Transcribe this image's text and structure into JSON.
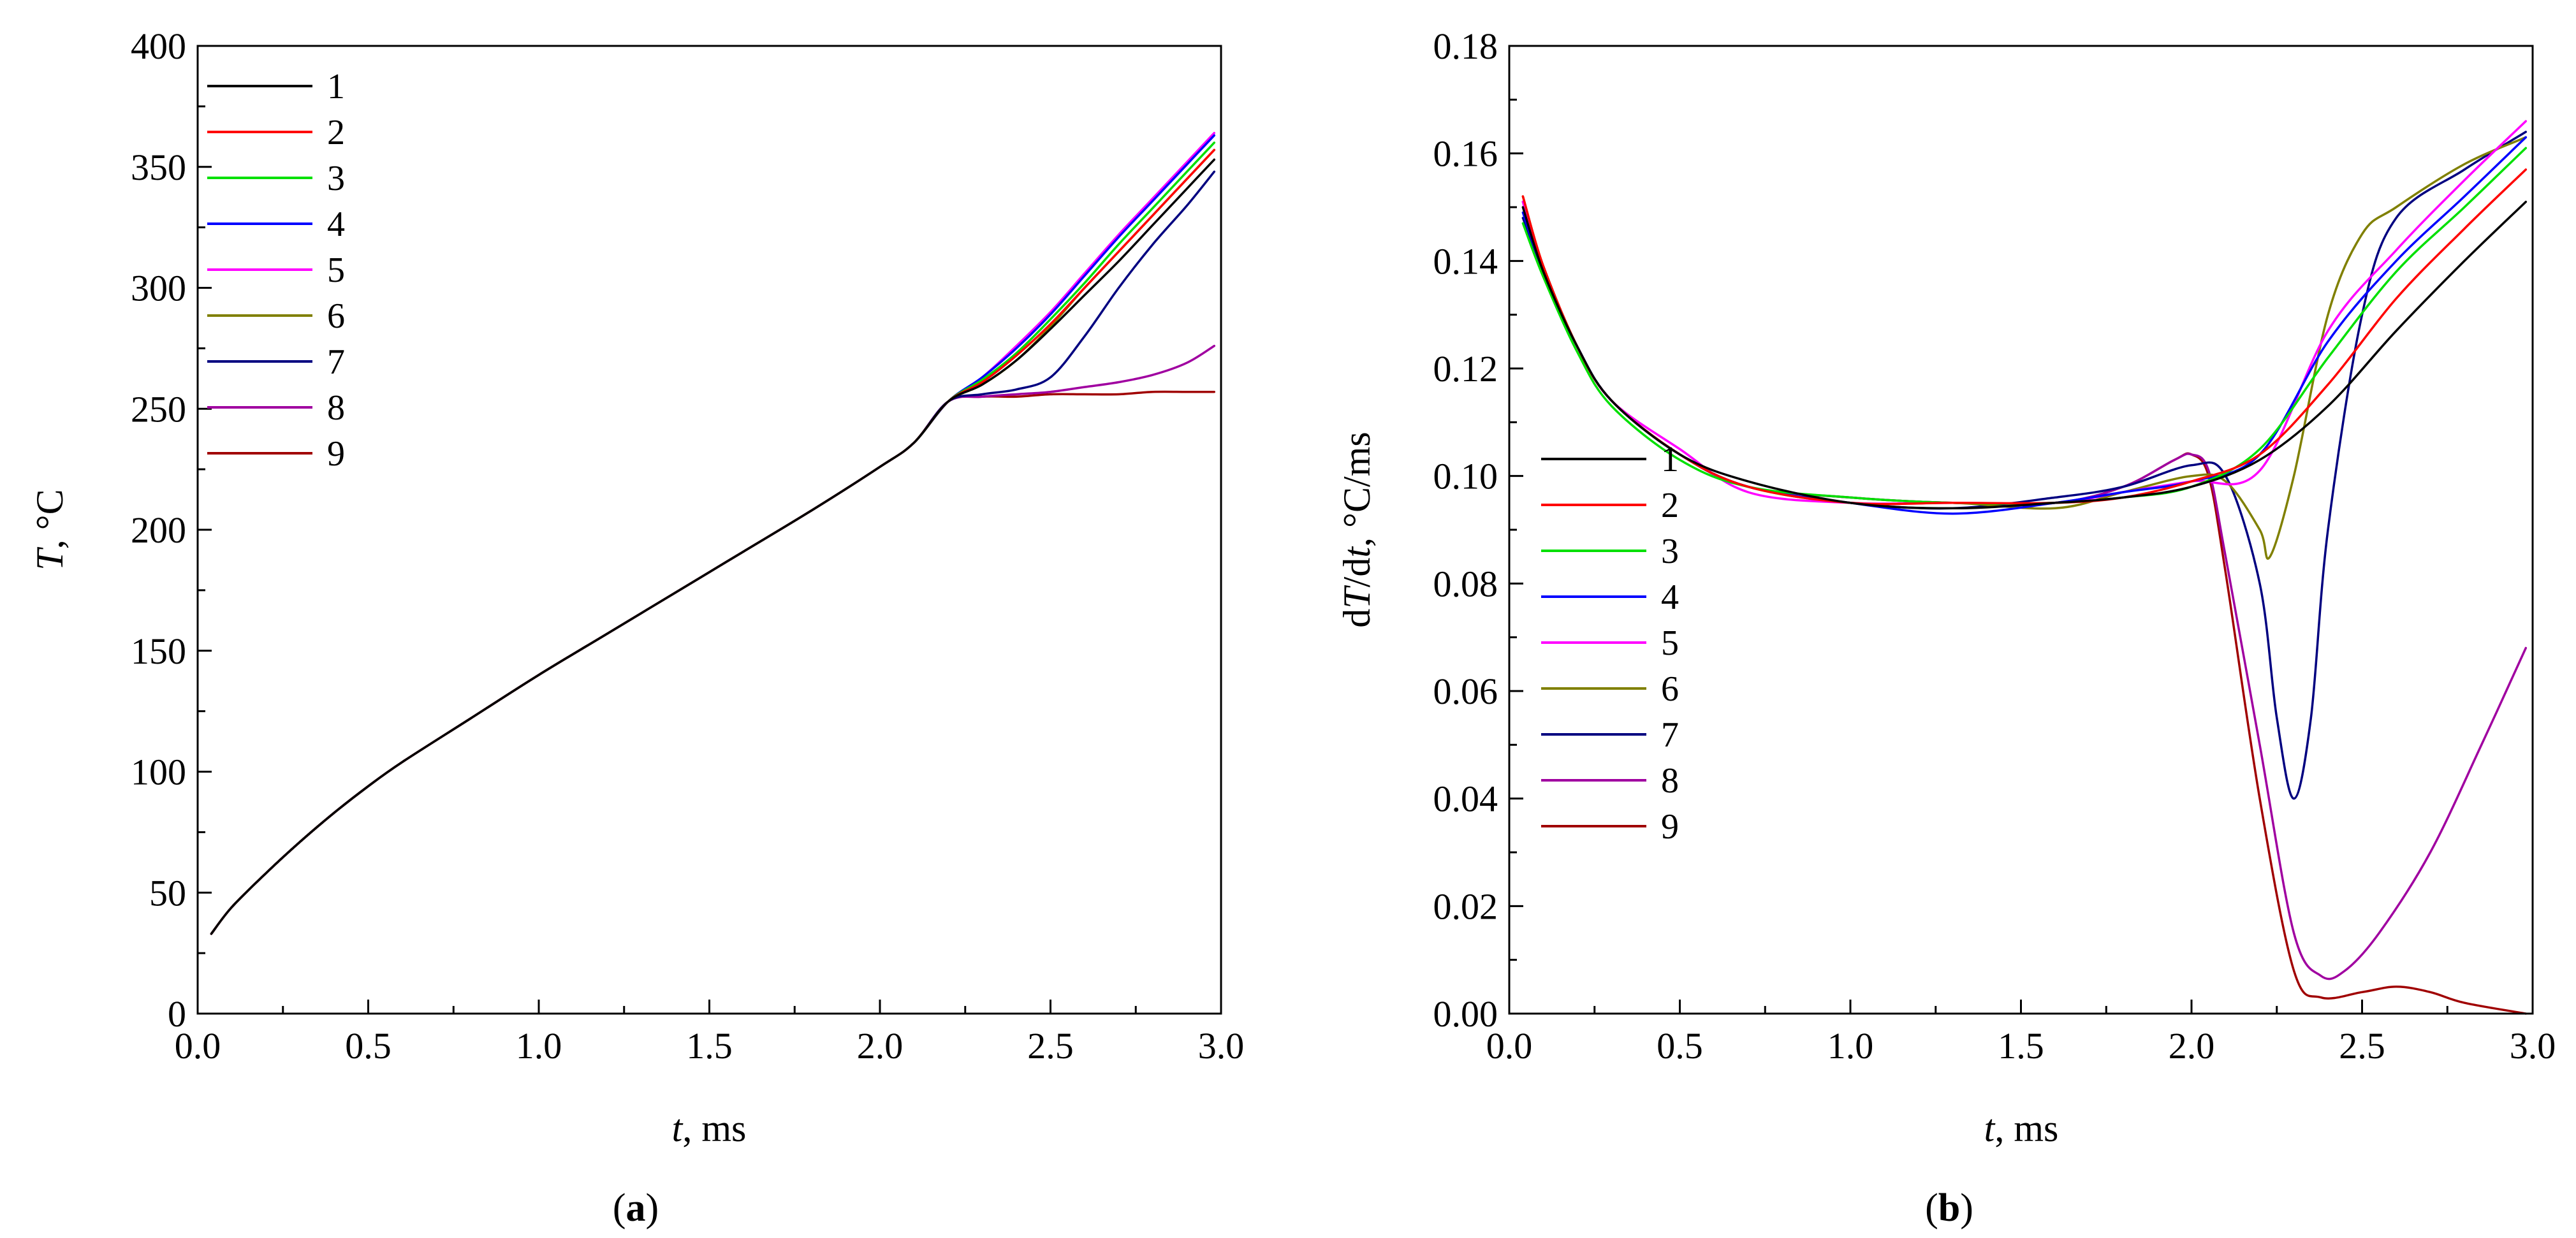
{
  "chart_data": [
    {
      "type": "line",
      "panel_label": {
        "open": "(",
        "letter": "a",
        "close": ")"
      },
      "ylabel": {
        "italic": "T",
        "rest": ", °C"
      },
      "xlabel": {
        "italic": "t",
        "rest": ", ms"
      },
      "xlim": [
        0,
        3.0
      ],
      "ylim": [
        0,
        400
      ],
      "xticks": [
        0.0,
        0.5,
        1.0,
        1.5,
        2.0,
        2.5,
        3.0
      ],
      "xtick_labels": [
        "0.0",
        "0.5",
        "1.0",
        "1.5",
        "2.0",
        "2.5",
        "3.0"
      ],
      "yticks": [
        0,
        50,
        100,
        150,
        200,
        250,
        300,
        350,
        400
      ],
      "ytick_labels": [
        "0",
        "50",
        "100",
        "150",
        "200",
        "250",
        "300",
        "350",
        "400"
      ],
      "legend_position": "top-left",
      "base_curve": {
        "x": [
          0.04,
          0.1,
          0.2,
          0.3,
          0.4,
          0.5,
          0.6,
          0.8,
          1.0,
          1.2,
          1.4,
          1.6,
          1.8,
          2.0,
          2.1,
          2.2
        ],
        "y": [
          33,
          44,
          58,
          71,
          83,
          94,
          104,
          122,
          140,
          157,
          174,
          191,
          208,
          226,
          236,
          253
        ]
      },
      "series": [
        {
          "name": "1",
          "color": "#000000",
          "x": [
            2.2,
            2.3,
            2.4,
            2.5,
            2.6,
            2.7,
            2.8,
            2.9,
            2.98
          ],
          "y": [
            253,
            260,
            270,
            283,
            297,
            311,
            326,
            341,
            353
          ]
        },
        {
          "name": "2",
          "color": "#ff0000",
          "x": [
            2.2,
            2.3,
            2.4,
            2.5,
            2.6,
            2.7,
            2.8,
            2.9,
            2.98
          ],
          "y": [
            253,
            261,
            272,
            285,
            300,
            315,
            330,
            345,
            357
          ]
        },
        {
          "name": "3",
          "color": "#00e000",
          "x": [
            2.2,
            2.3,
            2.4,
            2.5,
            2.6,
            2.7,
            2.8,
            2.9,
            2.98
          ],
          "y": [
            253,
            262,
            273,
            287,
            302,
            318,
            333,
            348,
            360
          ]
        },
        {
          "name": "4",
          "color": "#0000ff",
          "x": [
            2.2,
            2.3,
            2.4,
            2.5,
            2.6,
            2.7,
            2.8,
            2.9,
            2.98
          ],
          "y": [
            253,
            263,
            275,
            289,
            305,
            321,
            336,
            351,
            363
          ]
        },
        {
          "name": "5",
          "color": "#ff00ff",
          "x": [
            2.2,
            2.3,
            2.4,
            2.5,
            2.6,
            2.7,
            2.8,
            2.9,
            2.98
          ],
          "y": [
            253,
            263,
            276,
            290,
            306,
            322,
            337,
            352,
            364
          ]
        },
        {
          "name": "6",
          "color": "#808000",
          "x": [
            2.2,
            2.3,
            2.4,
            2.5,
            2.6,
            2.7,
            2.8,
            2.9,
            2.98
          ],
          "y": [
            253,
            260,
            270,
            284,
            300,
            315,
            330,
            345,
            357
          ]
        },
        {
          "name": "7",
          "color": "#000080",
          "x": [
            2.2,
            2.3,
            2.4,
            2.5,
            2.6,
            2.7,
            2.8,
            2.9,
            2.98
          ],
          "y": [
            253,
            256,
            258,
            263,
            280,
            300,
            318,
            334,
            348
          ]
        },
        {
          "name": "8",
          "color": "#a000a0",
          "x": [
            2.2,
            2.3,
            2.4,
            2.5,
            2.6,
            2.7,
            2.8,
            2.9,
            2.98
          ],
          "y": [
            253,
            255,
            256,
            257,
            259,
            261,
            264,
            269,
            276
          ]
        },
        {
          "name": "9",
          "color": "#a00000",
          "x": [
            2.2,
            2.3,
            2.4,
            2.5,
            2.6,
            2.7,
            2.8,
            2.9,
            2.98
          ],
          "y": [
            253,
            255,
            255,
            256,
            256,
            256,
            257,
            257,
            257
          ]
        }
      ]
    },
    {
      "type": "line",
      "panel_label": {
        "open": "(",
        "letter": "b",
        "close": ")"
      },
      "ylabel": {
        "p1": "d",
        "i1": "T",
        "p2": "/d",
        "i2": "t",
        "p3": ", °C/ms"
      },
      "xlabel": {
        "italic": "t",
        "rest": ", ms"
      },
      "xlim": [
        0,
        3.0
      ],
      "ylim": [
        0,
        0.18
      ],
      "xticks": [
        0.0,
        0.5,
        1.0,
        1.5,
        2.0,
        2.5,
        3.0
      ],
      "xtick_labels": [
        "0.0",
        "0.5",
        "1.0",
        "1.5",
        "2.0",
        "2.5",
        "3.0"
      ],
      "yticks": [
        0.0,
        0.02,
        0.04,
        0.06,
        0.08,
        0.1,
        0.12,
        0.14,
        0.16,
        0.18
      ],
      "ytick_labels": [
        "0.00",
        "0.02",
        "0.04",
        "0.06",
        "0.08",
        "0.10",
        "0.12",
        "0.14",
        "0.16",
        "0.18"
      ],
      "legend_position": "center-left",
      "series": [
        {
          "name": "1",
          "color": "#000000",
          "x": [
            0.04,
            0.1,
            0.2,
            0.3,
            0.5,
            0.7,
            1.0,
            1.3,
            1.6,
            1.8,
            2.0,
            2.2,
            2.4,
            2.6,
            2.8,
            2.98
          ],
          "y": [
            0.15,
            0.138,
            0.124,
            0.114,
            0.104,
            0.099,
            0.095,
            0.094,
            0.095,
            0.096,
            0.098,
            0.103,
            0.113,
            0.127,
            0.14,
            0.151
          ]
        },
        {
          "name": "2",
          "color": "#ff0000",
          "x": [
            0.04,
            0.1,
            0.2,
            0.3,
            0.5,
            0.7,
            1.0,
            1.3,
            1.6,
            1.8,
            2.0,
            2.2,
            2.4,
            2.6,
            2.8,
            2.98
          ],
          "y": [
            0.152,
            0.139,
            0.124,
            0.114,
            0.104,
            0.098,
            0.095,
            0.095,
            0.095,
            0.096,
            0.099,
            0.104,
            0.117,
            0.133,
            0.146,
            0.157
          ]
        },
        {
          "name": "3",
          "color": "#00e000",
          "x": [
            0.04,
            0.1,
            0.2,
            0.3,
            0.5,
            0.7,
            1.0,
            1.3,
            1.6,
            1.8,
            2.0,
            2.2,
            2.4,
            2.6,
            2.8,
            2.98
          ],
          "y": [
            0.147,
            0.137,
            0.123,
            0.113,
            0.103,
            0.098,
            0.096,
            0.095,
            0.095,
            0.096,
            0.098,
            0.105,
            0.122,
            0.138,
            0.15,
            0.161
          ]
        },
        {
          "name": "4",
          "color": "#0000ff",
          "x": [
            0.04,
            0.1,
            0.2,
            0.3,
            0.5,
            0.7,
            1.0,
            1.3,
            1.6,
            1.8,
            2.0,
            2.2,
            2.4,
            2.6,
            2.8,
            2.98
          ],
          "y": [
            0.149,
            0.138,
            0.124,
            0.114,
            0.104,
            0.098,
            0.095,
            0.093,
            0.095,
            0.097,
            0.099,
            0.104,
            0.125,
            0.14,
            0.152,
            0.163
          ]
        },
        {
          "name": "5",
          "color": "#ff00ff",
          "x": [
            0.04,
            0.1,
            0.2,
            0.3,
            0.5,
            0.7,
            1.0,
            1.3,
            1.6,
            1.8,
            2.0,
            2.2,
            2.4,
            2.6,
            2.8,
            2.98
          ],
          "y": [
            0.151,
            0.138,
            0.124,
            0.114,
            0.105,
            0.097,
            0.095,
            0.095,
            0.095,
            0.097,
            0.099,
            0.101,
            0.127,
            0.142,
            0.155,
            0.166
          ]
        },
        {
          "name": "6",
          "color": "#808000",
          "x": [
            0.04,
            0.1,
            0.2,
            0.3,
            0.5,
            0.7,
            1.0,
            1.3,
            1.6,
            1.8,
            2.0,
            2.1,
            2.2,
            2.23,
            2.3,
            2.4,
            2.5,
            2.6,
            2.8,
            2.98
          ],
          "y": [
            0.152,
            0.139,
            0.124,
            0.114,
            0.104,
            0.098,
            0.095,
            0.095,
            0.094,
            0.097,
            0.1,
            0.099,
            0.09,
            0.085,
            0.1,
            0.13,
            0.145,
            0.15,
            0.158,
            0.163
          ]
        },
        {
          "name": "7",
          "color": "#000080",
          "x": [
            0.04,
            0.1,
            0.2,
            0.3,
            0.5,
            0.7,
            1.0,
            1.3,
            1.6,
            1.8,
            2.0,
            2.1,
            2.2,
            2.25,
            2.3,
            2.35,
            2.4,
            2.5,
            2.6,
            2.8,
            2.98
          ],
          "y": [
            0.148,
            0.138,
            0.124,
            0.114,
            0.104,
            0.098,
            0.095,
            0.094,
            0.096,
            0.098,
            0.102,
            0.1,
            0.08,
            0.055,
            0.04,
            0.055,
            0.09,
            0.13,
            0.148,
            0.157,
            0.164
          ]
        },
        {
          "name": "8",
          "color": "#a000a0",
          "x": [
            0.04,
            0.1,
            0.2,
            0.3,
            0.5,
            0.7,
            1.0,
            1.3,
            1.6,
            1.8,
            1.95,
            2.0,
            2.05,
            2.1,
            2.2,
            2.3,
            2.38,
            2.45,
            2.55,
            2.7,
            2.85,
            2.98
          ],
          "y": [
            0.15,
            0.138,
            0.124,
            0.114,
            0.104,
            0.098,
            0.096,
            0.095,
            0.095,
            0.098,
            0.103,
            0.104,
            0.101,
            0.085,
            0.05,
            0.015,
            0.007,
            0.008,
            0.015,
            0.03,
            0.05,
            0.068
          ]
        },
        {
          "name": "9",
          "color": "#a00000",
          "x": [
            0.04,
            0.1,
            0.2,
            0.3,
            0.5,
            0.7,
            1.0,
            1.3,
            1.6,
            1.8,
            1.95,
            2.0,
            2.05,
            2.1,
            2.2,
            2.3,
            2.38,
            2.5,
            2.6,
            2.7,
            2.8,
            2.98
          ],
          "y": [
            0.151,
            0.139,
            0.124,
            0.114,
            0.104,
            0.098,
            0.096,
            0.095,
            0.095,
            0.098,
            0.103,
            0.104,
            0.1,
            0.082,
            0.04,
            0.008,
            0.003,
            0.004,
            0.005,
            0.004,
            0.002,
            0.0
          ]
        }
      ]
    }
  ]
}
